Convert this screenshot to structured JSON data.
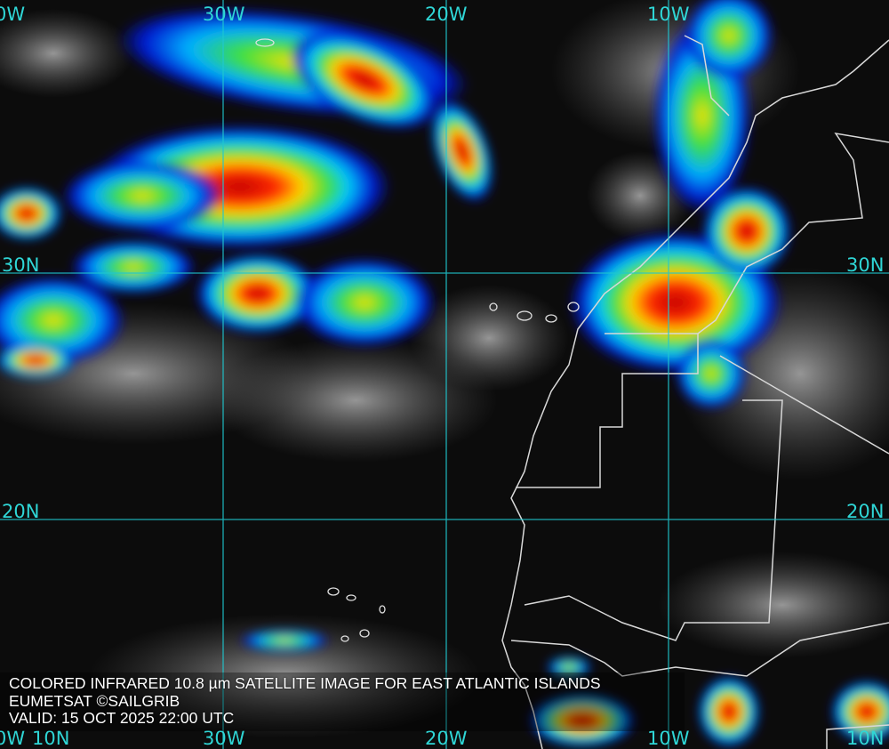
{
  "caption": {
    "title": "COLORED INFRARED 10.8 µm SATELLITE IMAGE FOR EAST ATLANTIC ISLANDS",
    "credit": "EUMETSAT ©SAILGRIB",
    "valid": "VALID:  15 OCT 2025 22:00 UTC"
  },
  "grid": {
    "top_labels": [
      "0W",
      "30W",
      "20W",
      "10W"
    ],
    "bottom_labels": [
      "0W",
      "30W",
      "20W",
      "10W",
      "10N"
    ],
    "left_labels": [
      "30N",
      "20N",
      "10N"
    ],
    "right_labels": [
      "30N",
      "20N"
    ],
    "line_color": "#1fc8d0"
  },
  "colors": {
    "cold_top": "#e00000",
    "warm_top": "#ffe000",
    "mid": "#00e060",
    "edge": "#0010d0",
    "coastline": "#d8d8d8"
  }
}
